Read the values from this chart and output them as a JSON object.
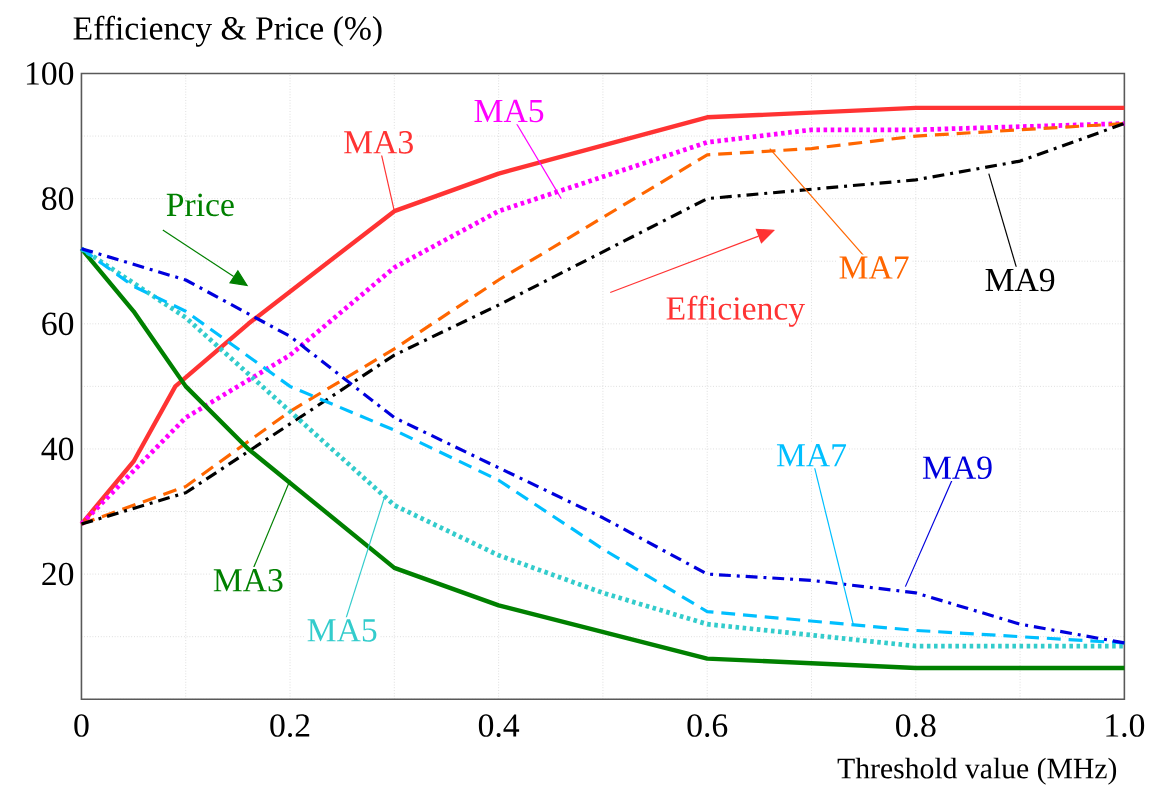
{
  "chart_data": {
    "type": "line",
    "title": "Efficiency & Price (%)",
    "xlabel": "Threshold value (MHz)",
    "xlim": [
      0,
      1.0
    ],
    "ylim": [
      0,
      100
    ],
    "xticks": [
      0,
      0.2,
      0.4,
      0.6,
      0.8,
      {
        "value": 1.0,
        "label": "1.0"
      }
    ],
    "yticks": [
      {
        "value": 0,
        "label": null
      },
      20,
      40,
      60,
      80,
      100
    ],
    "grid": true,
    "marker": "none",
    "annotations": [
      "Efficiency",
      "Price"
    ],
    "series": [
      {
        "name": "MA3",
        "color": "#ff3333",
        "line_style": "solid",
        "x": [
          0,
          0.05,
          0.09,
          0.16,
          0.3,
          0.4,
          0.6,
          0.8,
          1.0
        ],
        "values": [
          28,
          38,
          50,
          60,
          78,
          84,
          93,
          94.5,
          94.5
        ]
      },
      {
        "name": "MA5",
        "color": "#ff00ff",
        "line_style": "dotted",
        "x": [
          0,
          0.1,
          0.2,
          0.3,
          0.4,
          0.6,
          0.7,
          0.8,
          1.0
        ],
        "values": [
          28,
          45,
          55,
          69,
          78,
          89,
          91,
          91,
          92
        ]
      },
      {
        "name": "MA7",
        "color": "#ff6600",
        "line_style": "dashed",
        "x": [
          0,
          0.1,
          0.2,
          0.3,
          0.4,
          0.5,
          0.6,
          0.7,
          0.8,
          1.0
        ],
        "values": [
          28,
          34,
          46,
          56,
          67,
          77,
          87,
          88,
          90,
          92
        ]
      },
      {
        "name": "MA9",
        "color": "#000000",
        "line_style": "dashdot",
        "x": [
          0,
          0.1,
          0.2,
          0.3,
          0.4,
          0.6,
          0.8,
          0.9,
          1.0
        ],
        "values": [
          28,
          33,
          44,
          55,
          63,
          80,
          83,
          86,
          92
        ]
      },
      {
        "name": "MA3",
        "color": "#008000",
        "line_style": "solid",
        "x": [
          0,
          0.05,
          0.1,
          0.16,
          0.3,
          0.4,
          0.6,
          0.8,
          1.0
        ],
        "values": [
          72,
          62,
          50,
          40,
          21,
          15,
          6.5,
          5,
          5
        ]
      },
      {
        "name": "MA5",
        "color": "#33cccc",
        "line_style": "dotted",
        "x": [
          0,
          0.1,
          0.2,
          0.3,
          0.4,
          0.5,
          0.6,
          0.8,
          1.0
        ],
        "values": [
          72,
          61,
          46,
          31,
          23,
          17,
          12,
          8.5,
          8.5
        ]
      },
      {
        "name": "MA7",
        "color": "#00bfff",
        "line_style": "dashed",
        "x": [
          0,
          0.05,
          0.1,
          0.15,
          0.2,
          0.3,
          0.4,
          0.5,
          0.6,
          0.8,
          1.0
        ],
        "values": [
          72,
          66,
          62,
          56,
          50,
          43,
          35,
          24,
          14,
          11,
          9
        ]
      },
      {
        "name": "MA9",
        "color": "#0000dd",
        "line_style": "dashdot",
        "x": [
          0,
          0.1,
          0.2,
          0.3,
          0.4,
          0.5,
          0.6,
          0.7,
          0.8,
          0.9,
          1.0
        ],
        "values": [
          72,
          67,
          58,
          45,
          37,
          29,
          20,
          19,
          17,
          12,
          9
        ]
      }
    ]
  }
}
